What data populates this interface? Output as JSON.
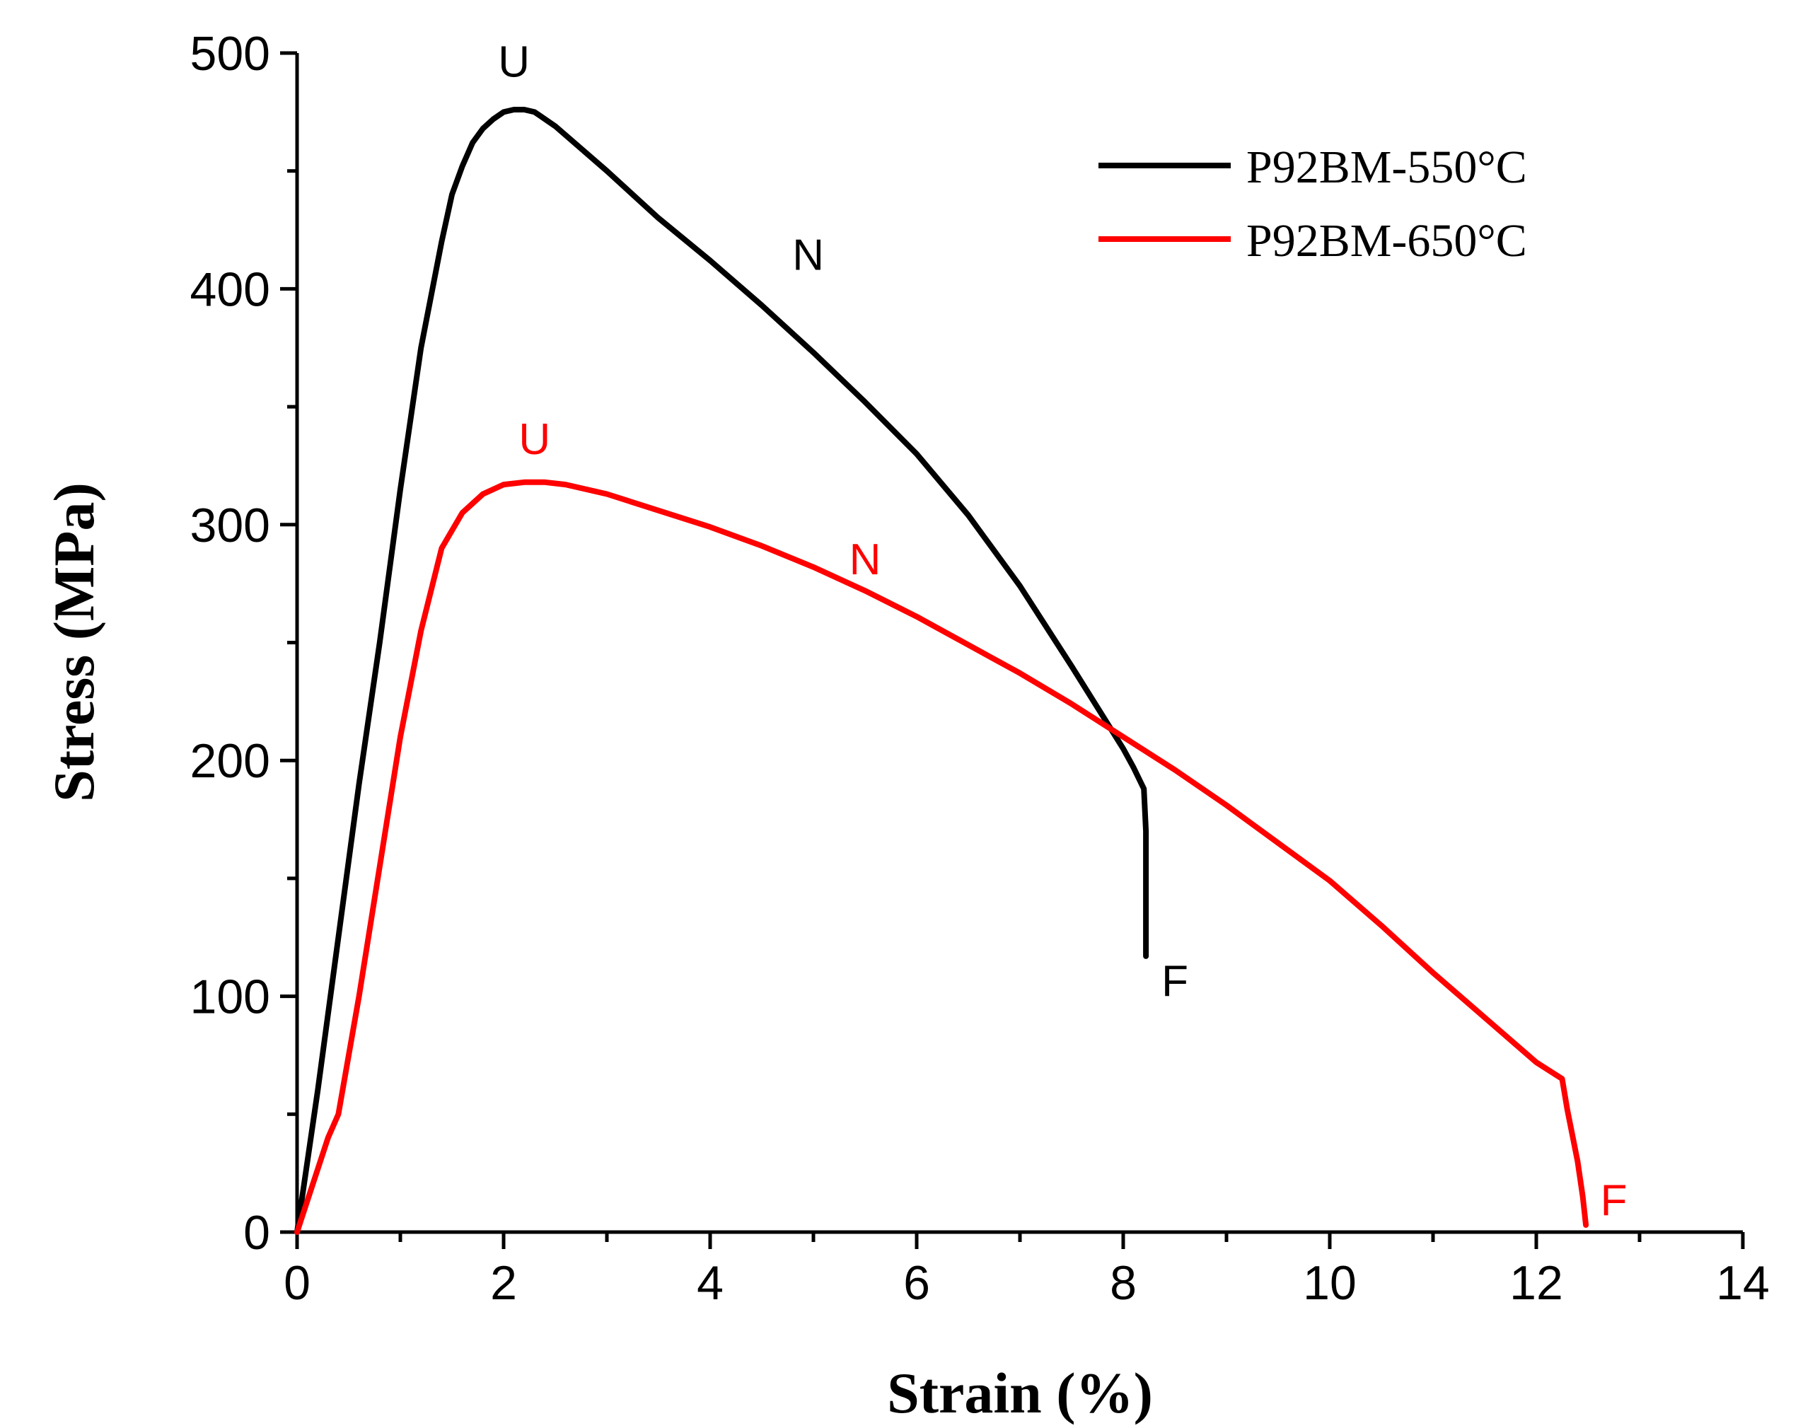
{
  "chart_data": {
    "type": "line",
    "title": "",
    "xlabel": "Strain (%)",
    "ylabel": "Stress (MPa)",
    "xlim": [
      0,
      14
    ],
    "ylim": [
      0,
      500
    ],
    "xticks": [
      0,
      2,
      4,
      6,
      8,
      10,
      12,
      14
    ],
    "yticks": [
      0,
      100,
      200,
      300,
      400,
      500
    ],
    "x_minor_step": 1,
    "y_minor_step": 50,
    "grid": false,
    "legend_position": "top-right",
    "series": [
      {
        "name": "P92BM-550°C",
        "color": "#000000",
        "x": [
          0,
          0.2,
          0.4,
          0.6,
          0.8,
          1.0,
          1.2,
          1.4,
          1.5,
          1.6,
          1.7,
          1.8,
          1.9,
          2.0,
          2.1,
          2.2,
          2.3,
          2.5,
          3.0,
          3.5,
          4.0,
          4.5,
          5.0,
          5.5,
          6.0,
          6.5,
          7.0,
          7.5,
          8.0,
          8.1,
          8.2,
          8.22,
          8.22,
          8.22
        ],
        "y": [
          0,
          60,
          125,
          190,
          250,
          315,
          375,
          420,
          440,
          452,
          462,
          468,
          472,
          475,
          476,
          476,
          475,
          469,
          450,
          430,
          412,
          393,
          373,
          352,
          330,
          304,
          274,
          240,
          205,
          197,
          188,
          170,
          140,
          117
        ]
      },
      {
        "name": "P92BM-650°C",
        "color": "#ff0000",
        "x": [
          0,
          0.15,
          0.3,
          0.4,
          0.6,
          0.8,
          1.0,
          1.2,
          1.4,
          1.6,
          1.8,
          2.0,
          2.2,
          2.4,
          2.6,
          3.0,
          3.5,
          4.0,
          4.5,
          5.0,
          5.5,
          6.0,
          6.5,
          7.0,
          7.5,
          8.0,
          8.5,
          9.0,
          9.5,
          10.0,
          10.5,
          11.0,
          11.5,
          12.0,
          12.25,
          12.3,
          12.4,
          12.45,
          12.48
        ],
        "y": [
          0,
          20,
          40,
          50,
          100,
          155,
          210,
          255,
          290,
          305,
          313,
          317,
          318,
          318,
          317,
          313,
          306,
          299,
          291,
          282,
          272,
          261,
          249,
          237,
          224,
          210,
          196,
          181,
          165,
          149,
          130,
          110,
          91,
          72,
          65,
          52,
          30,
          15,
          3
        ]
      }
    ],
    "annotations": [
      {
        "text": "U",
        "x": 2.1,
        "y": 490,
        "color": "#000000"
      },
      {
        "text": "N",
        "x": 4.95,
        "y": 408,
        "color": "#000000"
      },
      {
        "text": "F",
        "x": 8.5,
        "y": 100,
        "color": "#000000"
      },
      {
        "text": "U",
        "x": 2.3,
        "y": 330,
        "color": "#ff0000"
      },
      {
        "text": "N",
        "x": 5.5,
        "y": 279,
        "color": "#ff0000"
      },
      {
        "text": "F",
        "x": 12.75,
        "y": 7,
        "color": "#ff0000"
      }
    ]
  }
}
